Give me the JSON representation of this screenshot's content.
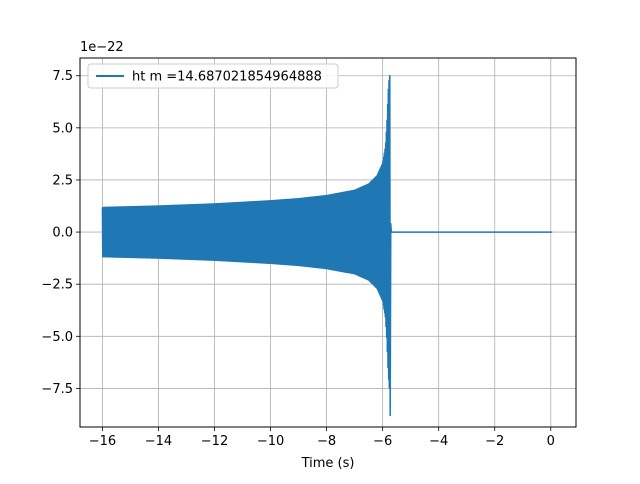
{
  "chart_data": {
    "type": "line",
    "title": "",
    "xlabel": "Time (s)",
    "ylabel": "",
    "offset_label": "1e−22",
    "xlim": [
      -16.8,
      0.9
    ],
    "ylim": [
      -9.35,
      8.35
    ],
    "xticks": [
      -16,
      -14,
      -12,
      -10,
      -8,
      -6,
      -4,
      -2,
      0
    ],
    "xtick_labels": [
      "−16",
      "−14",
      "−12",
      "−10",
      "−8",
      "−6",
      "−4",
      "−2",
      "0"
    ],
    "yticks": [
      -7.5,
      -5.0,
      -2.5,
      0.0,
      2.5,
      5.0,
      7.5
    ],
    "ytick_labels": [
      "−7.5",
      "−5.0",
      "−2.5",
      "0.0",
      "2.5",
      "5.0",
      "7.5"
    ],
    "grid": true,
    "legend_position": "upper-left",
    "series": [
      {
        "name": "ht m =14.687021854964888",
        "color": "#1f77b4",
        "description_of_shape": "oscillating chirp",
        "t_start": -16.0,
        "t_merger": -5.75,
        "t_end": 0.05,
        "envelope": {
          "t": [
            -16.0,
            -14.0,
            -12.0,
            -10.0,
            -9.0,
            -8.0,
            -7.0,
            -6.5,
            -6.2,
            -6.0,
            -5.9,
            -5.85,
            -5.8,
            -5.76
          ],
          "amp": [
            1.18,
            1.25,
            1.35,
            1.5,
            1.6,
            1.75,
            2.0,
            2.3,
            2.7,
            3.3,
            4.1,
            5.2,
            6.8,
            7.5
          ]
        },
        "min_value": -8.8,
        "max_value": 7.5
      }
    ]
  }
}
